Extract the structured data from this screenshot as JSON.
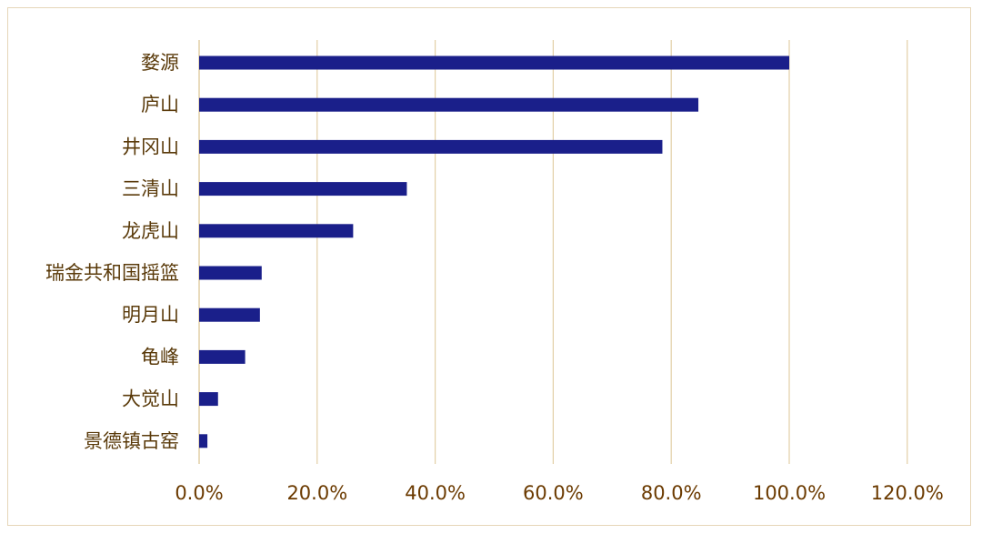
{
  "chart_data": {
    "type": "bar",
    "orientation": "horizontal",
    "categories": [
      "婺源",
      "庐山",
      "井冈山",
      "三清山",
      "龙虎山",
      "瑞金共和国摇篮",
      "明月山",
      "龟峰",
      "大觉山",
      "景德镇古窑"
    ],
    "values": [
      100.0,
      84.6,
      78.5,
      35.2,
      26.1,
      10.6,
      10.3,
      7.8,
      3.2,
      1.4
    ],
    "xlim": [
      0,
      120
    ],
    "xticks": [
      0,
      20,
      40,
      60,
      80,
      100,
      120
    ],
    "xtick_labels": [
      "0.0%",
      "20.0%",
      "40.0%",
      "60.0%",
      "80.0%",
      "100.0%",
      "120.0%"
    ],
    "title": "",
    "xlabel": "",
    "ylabel": "",
    "grid": "vertical",
    "bar_color": "#1a1f8a",
    "grid_color": "#e2cfa6",
    "label_color": "#5a3a0a"
  }
}
